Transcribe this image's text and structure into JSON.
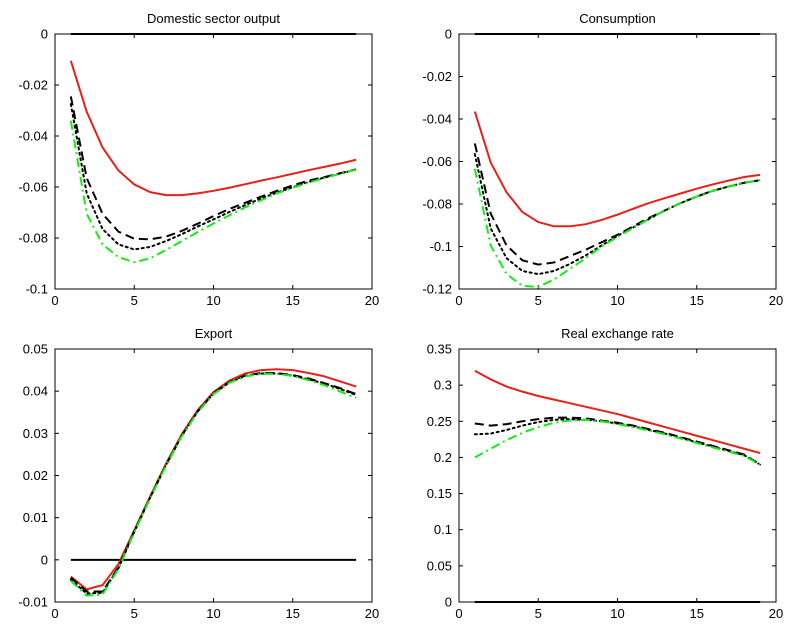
{
  "chart_data": [
    {
      "type": "line",
      "title": "Domestic sector output",
      "xlim": [
        0,
        20
      ],
      "ylim": [
        -0.1,
        0
      ],
      "xticks": [
        0,
        5,
        10,
        15,
        20
      ],
      "yticks": [
        0,
        -0.02,
        -0.04,
        -0.06,
        -0.08,
        -0.1
      ],
      "xtick_labels": [
        "0",
        "5",
        "10",
        "15",
        "20"
      ],
      "ytick_labels": [
        "0",
        "-0.02",
        "-0.04",
        "-0.06",
        "-0.08",
        "-0.1"
      ],
      "x": [
        1,
        2,
        3,
        4,
        5,
        6,
        7,
        8,
        9,
        10,
        11,
        12,
        13,
        14,
        15,
        16,
        17,
        18,
        19
      ],
      "series": [
        {
          "style": "solid",
          "color": "#000000",
          "values": [
            0,
            0,
            0,
            0,
            0,
            0,
            0,
            0,
            0,
            0,
            0,
            0,
            0,
            0,
            0,
            0,
            0,
            0,
            0
          ]
        },
        {
          "style": "solid",
          "color": "#e8201a",
          "values": [
            -0.0105,
            -0.0305,
            -0.0445,
            -0.0535,
            -0.059,
            -0.062,
            -0.0632,
            -0.0632,
            -0.0625,
            -0.0615,
            -0.0603,
            -0.0589,
            -0.0575,
            -0.0562,
            -0.0548,
            -0.0534,
            -0.0521,
            -0.0508,
            -0.0493
          ]
        },
        {
          "style": "dashed",
          "color": "#000000",
          "values": [
            -0.0245,
            -0.0565,
            -0.0705,
            -0.0775,
            -0.0803,
            -0.0805,
            -0.0795,
            -0.0772,
            -0.0744,
            -0.0714,
            -0.0686,
            -0.0662,
            -0.0638,
            -0.0615,
            -0.0594,
            -0.0575,
            -0.0561,
            -0.0546,
            -0.0531
          ]
        },
        {
          "style": "dotted",
          "color": "#000000",
          "values": [
            -0.0275,
            -0.0625,
            -0.0765,
            -0.0825,
            -0.0845,
            -0.0835,
            -0.0812,
            -0.0785,
            -0.0755,
            -0.0727,
            -0.0698,
            -0.0671,
            -0.0645,
            -0.0622,
            -0.0601,
            -0.058,
            -0.0563,
            -0.0547,
            -0.0532
          ]
        },
        {
          "style": "dashdot",
          "color": "#11ee11",
          "values": [
            -0.034,
            -0.0705,
            -0.0825,
            -0.0875,
            -0.0895,
            -0.088,
            -0.0847,
            -0.0812,
            -0.0777,
            -0.0743,
            -0.0711,
            -0.068,
            -0.0652,
            -0.0625,
            -0.0603,
            -0.0583,
            -0.0565,
            -0.0548,
            -0.0532
          ]
        }
      ]
    },
    {
      "type": "line",
      "title": "Consumption",
      "xlim": [
        0,
        20
      ],
      "ylim": [
        -0.12,
        0
      ],
      "xticks": [
        0,
        5,
        10,
        15,
        20
      ],
      "yticks": [
        0,
        -0.02,
        -0.04,
        -0.06,
        -0.08,
        -0.1,
        -0.12
      ],
      "xtick_labels": [
        "0",
        "5",
        "10",
        "15",
        "20"
      ],
      "ytick_labels": [
        "0",
        "-0.02",
        "-0.04",
        "-0.06",
        "-0.08",
        "-0.1",
        "-0.12"
      ],
      "x": [
        1,
        2,
        3,
        4,
        5,
        6,
        7,
        8,
        9,
        10,
        11,
        12,
        13,
        14,
        15,
        16,
        17,
        18,
        19
      ],
      "series": [
        {
          "style": "solid",
          "color": "#000000",
          "values": [
            0,
            0,
            0,
            0,
            0,
            0,
            0,
            0,
            0,
            0,
            0,
            0,
            0,
            0,
            0,
            0,
            0,
            0,
            0
          ]
        },
        {
          "style": "solid",
          "color": "#e8201a",
          "values": [
            -0.0365,
            -0.0605,
            -0.0745,
            -0.0838,
            -0.0885,
            -0.0905,
            -0.0905,
            -0.0895,
            -0.0875,
            -0.085,
            -0.0822,
            -0.0795,
            -0.0772,
            -0.075,
            -0.0728,
            -0.0708,
            -0.069,
            -0.0673,
            -0.0663
          ]
        },
        {
          "style": "dashed",
          "color": "#000000",
          "values": [
            -0.0515,
            -0.0845,
            -0.0995,
            -0.1065,
            -0.1085,
            -0.1075,
            -0.1045,
            -0.1015,
            -0.098,
            -0.0945,
            -0.0905,
            -0.0865,
            -0.083,
            -0.0795,
            -0.0765,
            -0.0738,
            -0.0718,
            -0.07,
            -0.0688
          ]
        },
        {
          "style": "dotted",
          "color": "#000000",
          "values": [
            -0.0565,
            -0.0915,
            -0.1055,
            -0.1115,
            -0.113,
            -0.1115,
            -0.1082,
            -0.1042,
            -0.0995,
            -0.095,
            -0.091,
            -0.087,
            -0.083,
            -0.0795,
            -0.0765,
            -0.0738,
            -0.0718,
            -0.07,
            -0.0688
          ]
        },
        {
          "style": "dashdot",
          "color": "#11ee11",
          "values": [
            -0.0635,
            -0.0995,
            -0.113,
            -0.1185,
            -0.119,
            -0.1155,
            -0.1105,
            -0.1055,
            -0.1,
            -0.0955,
            -0.0912,
            -0.087,
            -0.083,
            -0.0795,
            -0.0765,
            -0.0738,
            -0.0718,
            -0.07,
            -0.0688
          ]
        }
      ]
    },
    {
      "type": "line",
      "title": "Export",
      "xlim": [
        0,
        20
      ],
      "ylim": [
        -0.01,
        0.05
      ],
      "xticks": [
        0,
        5,
        10,
        15,
        20
      ],
      "yticks": [
        0.05,
        0.04,
        0.03,
        0.02,
        0.01,
        0,
        -0.01
      ],
      "xtick_labels": [
        "0",
        "5",
        "10",
        "15",
        "20"
      ],
      "ytick_labels": [
        "0.05",
        "0.04",
        "0.03",
        "0.02",
        "0.01",
        "0",
        "-0.01"
      ],
      "x": [
        1,
        2,
        3,
        4,
        5,
        6,
        7,
        8,
        9,
        10,
        11,
        12,
        13,
        14,
        15,
        16,
        17,
        18,
        19
      ],
      "series": [
        {
          "style": "solid",
          "color": "#000000",
          "values": [
            0,
            0,
            0,
            0,
            0,
            0,
            0,
            0,
            0,
            0,
            0,
            0,
            0,
            0,
            0,
            0,
            0,
            0,
            0
          ]
        },
        {
          "style": "solid",
          "color": "#e8201a",
          "values": [
            -0.004,
            -0.007,
            -0.006,
            -0.001,
            0.007,
            0.015,
            0.0228,
            0.0298,
            0.0355,
            0.0398,
            0.0425,
            0.0442,
            0.045,
            0.0452,
            0.045,
            0.0443,
            0.0435,
            0.0423,
            0.0411
          ]
        },
        {
          "style": "dashed",
          "color": "#000000",
          "values": [
            -0.0042,
            -0.0075,
            -0.0075,
            -0.0018,
            0.0068,
            0.0148,
            0.0225,
            0.0295,
            0.0352,
            0.0395,
            0.0422,
            0.0437,
            0.0443,
            0.0443,
            0.0438,
            0.043,
            0.0419,
            0.0407,
            0.0393
          ]
        },
        {
          "style": "dotted",
          "color": "#000000",
          "values": [
            -0.0047,
            -0.008,
            -0.0078,
            -0.002,
            0.0066,
            0.0147,
            0.0224,
            0.0294,
            0.0352,
            0.0394,
            0.0421,
            0.0436,
            0.0442,
            0.0442,
            0.0437,
            0.0428,
            0.0418,
            0.0405,
            0.0391
          ]
        },
        {
          "style": "dashdot",
          "color": "#11ee11",
          "values": [
            -0.005,
            -0.0085,
            -0.0082,
            -0.0022,
            0.0065,
            0.0146,
            0.0223,
            0.0293,
            0.035,
            0.0393,
            0.042,
            0.0435,
            0.0441,
            0.0441,
            0.0436,
            0.0426,
            0.0414,
            0.0399,
            0.0384
          ]
        }
      ]
    },
    {
      "type": "line",
      "title": "Real exchange rate",
      "xlim": [
        0,
        20
      ],
      "ylim": [
        0,
        0.35
      ],
      "xticks": [
        0,
        5,
        10,
        15,
        20
      ],
      "yticks": [
        0.35,
        0.3,
        0.25,
        0.2,
        0.15,
        0.1,
        0.05,
        0
      ],
      "xtick_labels": [
        "0",
        "5",
        "10",
        "15",
        "20"
      ],
      "ytick_labels": [
        "0.35",
        "0.3",
        "0.25",
        "0.2",
        "0.15",
        "0.1",
        "0.05",
        "0"
      ],
      "x": [
        1,
        2,
        3,
        4,
        5,
        6,
        7,
        8,
        9,
        10,
        11,
        12,
        13,
        14,
        15,
        16,
        17,
        18,
        19
      ],
      "series": [
        {
          "style": "solid",
          "color": "#000000",
          "values": [
            0,
            0,
            0,
            0,
            0,
            0,
            0,
            0,
            0,
            0,
            0,
            0,
            0,
            0,
            0,
            0,
            0,
            0,
            0
          ]
        },
        {
          "style": "solid",
          "color": "#e8201a",
          "values": [
            0.32,
            0.308,
            0.298,
            0.291,
            0.285,
            0.28,
            0.275,
            0.27,
            0.265,
            0.26,
            0.254,
            0.248,
            0.242,
            0.236,
            0.23,
            0.224,
            0.218,
            0.212,
            0.206
          ]
        },
        {
          "style": "dashed",
          "color": "#000000",
          "values": [
            0.247,
            0.244,
            0.246,
            0.25,
            0.253,
            0.255,
            0.255,
            0.254,
            0.251,
            0.248,
            0.244,
            0.239,
            0.234,
            0.228,
            0.222,
            0.216,
            0.21,
            0.204,
            0.19
          ]
        },
        {
          "style": "dotted",
          "color": "#000000",
          "values": [
            0.232,
            0.233,
            0.238,
            0.244,
            0.249,
            0.252,
            0.253,
            0.252,
            0.25,
            0.247,
            0.243,
            0.238,
            0.233,
            0.227,
            0.221,
            0.215,
            0.209,
            0.203,
            0.19
          ]
        },
        {
          "style": "dashdot",
          "color": "#11ee11",
          "values": [
            0.2,
            0.212,
            0.224,
            0.234,
            0.242,
            0.248,
            0.251,
            0.252,
            0.25,
            0.246,
            0.242,
            0.237,
            0.232,
            0.226,
            0.22,
            0.214,
            0.208,
            0.202,
            0.19
          ]
        }
      ]
    }
  ]
}
